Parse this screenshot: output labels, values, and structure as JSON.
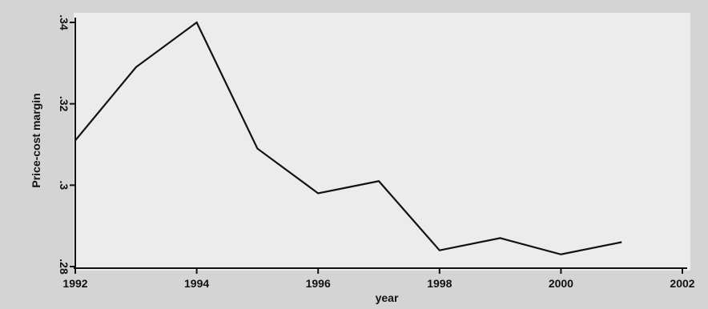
{
  "chart_data": {
    "type": "line",
    "title": "",
    "xlabel": "year",
    "ylabel": "Price-cost margin",
    "x": [
      1992,
      1993,
      1994,
      1995,
      1996,
      1997,
      1998,
      1999,
      2000,
      2001
    ],
    "series": [
      {
        "values": [
          0.311,
          0.329,
          0.34,
          0.309,
          0.298,
          0.301,
          0.284,
          0.287,
          0.283,
          0.286
        ]
      }
    ],
    "xlim": [
      1992,
      2002
    ],
    "ylim": [
      0.28,
      0.34
    ],
    "xticks": [
      "1992",
      "1994",
      "1996",
      "1998",
      "2000",
      "2002"
    ],
    "yticks": [
      ".28",
      ".3",
      ".32",
      ".34"
    ],
    "grid": false,
    "line_color": "#111111"
  }
}
